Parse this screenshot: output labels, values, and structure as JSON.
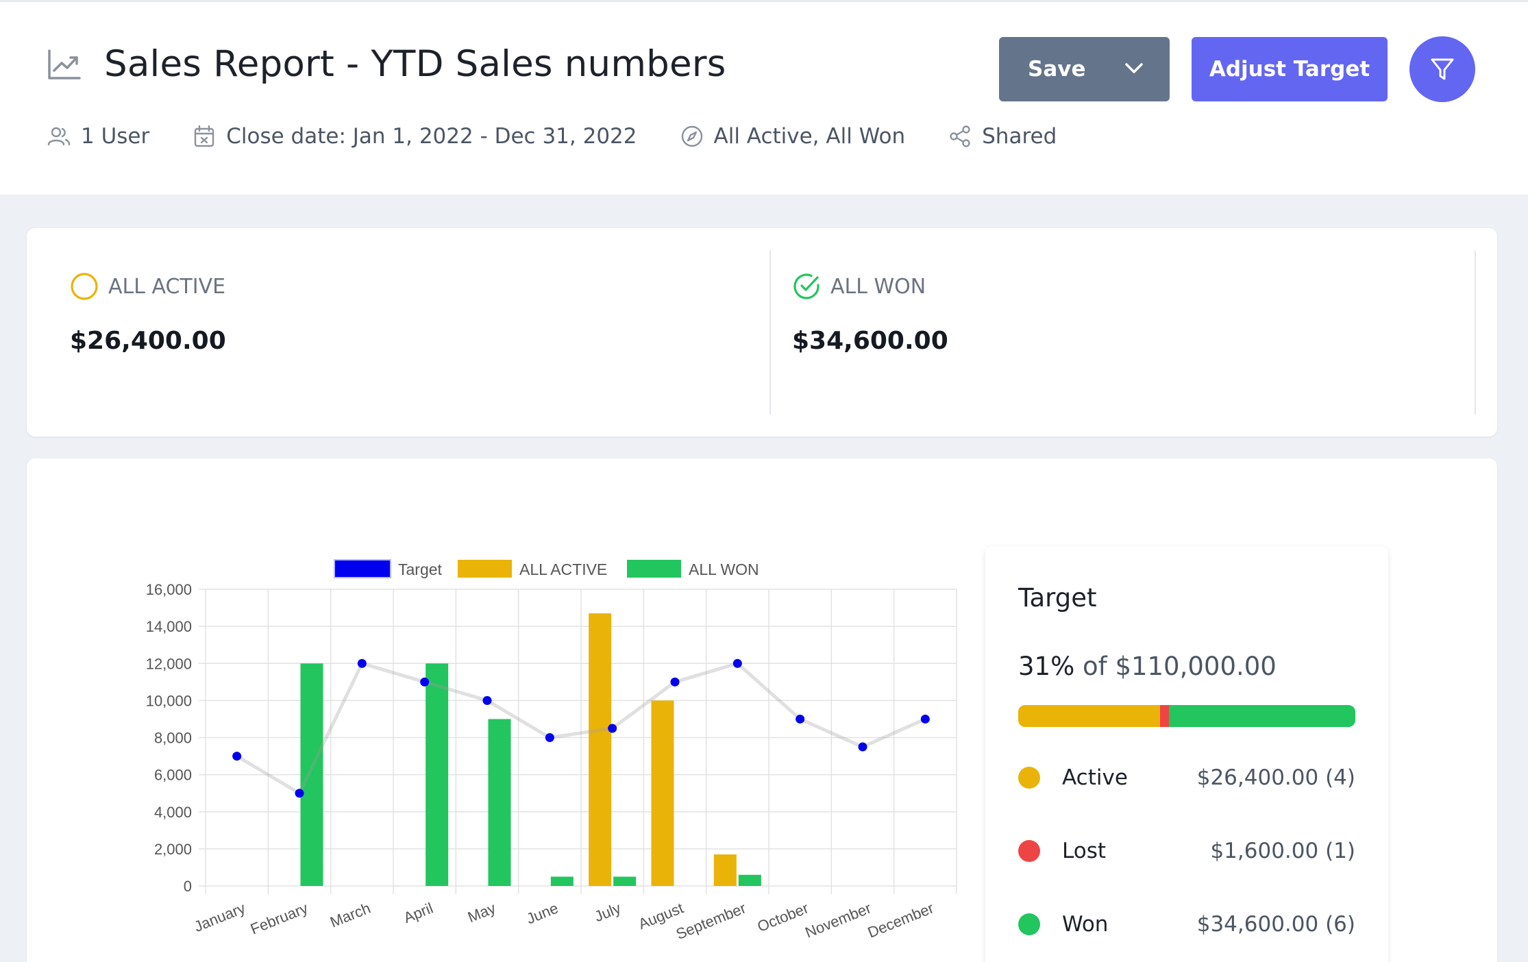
{
  "header": {
    "title": "Sales Report - YTD Sales numbers",
    "title_icon": "trending-up-icon",
    "buttons": {
      "save_label": "Save",
      "adjust_label": "Adjust Target",
      "filter_icon": "filter-icon"
    },
    "meta": {
      "users": "1 User",
      "close_date": "Close date: Jan 1, 2022 - Dec 31, 2022",
      "status": "All Active, All Won",
      "sharing": "Shared"
    }
  },
  "kpis": {
    "active": {
      "label": "ALL ACTIVE",
      "value": "$26,400.00",
      "color": "#eab308"
    },
    "won": {
      "label": "ALL WON",
      "value": "$34,600.00",
      "color": "#22c55e"
    }
  },
  "target_panel": {
    "title": "Target",
    "percent": "31%",
    "of_text": "of $110,000.00",
    "breakdown": [
      {
        "label": "Active",
        "value": "$26,400.00 (4)",
        "color": "#eab308",
        "amount": 26400
      },
      {
        "label": "Lost",
        "value": "$1,600.00 (1)",
        "color": "#ef4444",
        "amount": 1600
      },
      {
        "label": "Won",
        "value": "$34,600.00 (6)",
        "color": "#22c55e",
        "amount": 34600
      }
    ]
  },
  "chart_data": {
    "type": "bar",
    "categories": [
      "January",
      "February",
      "March",
      "April",
      "May",
      "June",
      "July",
      "August",
      "September",
      "October",
      "November",
      "December"
    ],
    "ylim": [
      0,
      16000
    ],
    "yticks": [
      "0",
      "2,000",
      "4,000",
      "6,000",
      "8,000",
      "10,000",
      "12,000",
      "14,000",
      "16,000"
    ],
    "ytick_values": [
      0,
      2000,
      4000,
      6000,
      8000,
      10000,
      12000,
      14000,
      16000
    ],
    "grid": true,
    "legend_position": "top",
    "series": [
      {
        "name": "Target",
        "type": "line",
        "color": "#0000ee",
        "values": [
          7000,
          5000,
          12000,
          11000,
          10000,
          8000,
          8500,
          11000,
          12000,
          9000,
          7500,
          9000
        ]
      },
      {
        "name": "ALL ACTIVE",
        "type": "bar",
        "color": "#eab308",
        "values": [
          0,
          0,
          0,
          0,
          0,
          0,
          14700,
          10000,
          1700,
          0,
          0,
          0
        ]
      },
      {
        "name": "ALL WON",
        "type": "bar",
        "color": "#22c55e",
        "values": [
          0,
          12000,
          0,
          12000,
          9000,
          500,
          500,
          0,
          600,
          0,
          0,
          0
        ]
      }
    ]
  }
}
